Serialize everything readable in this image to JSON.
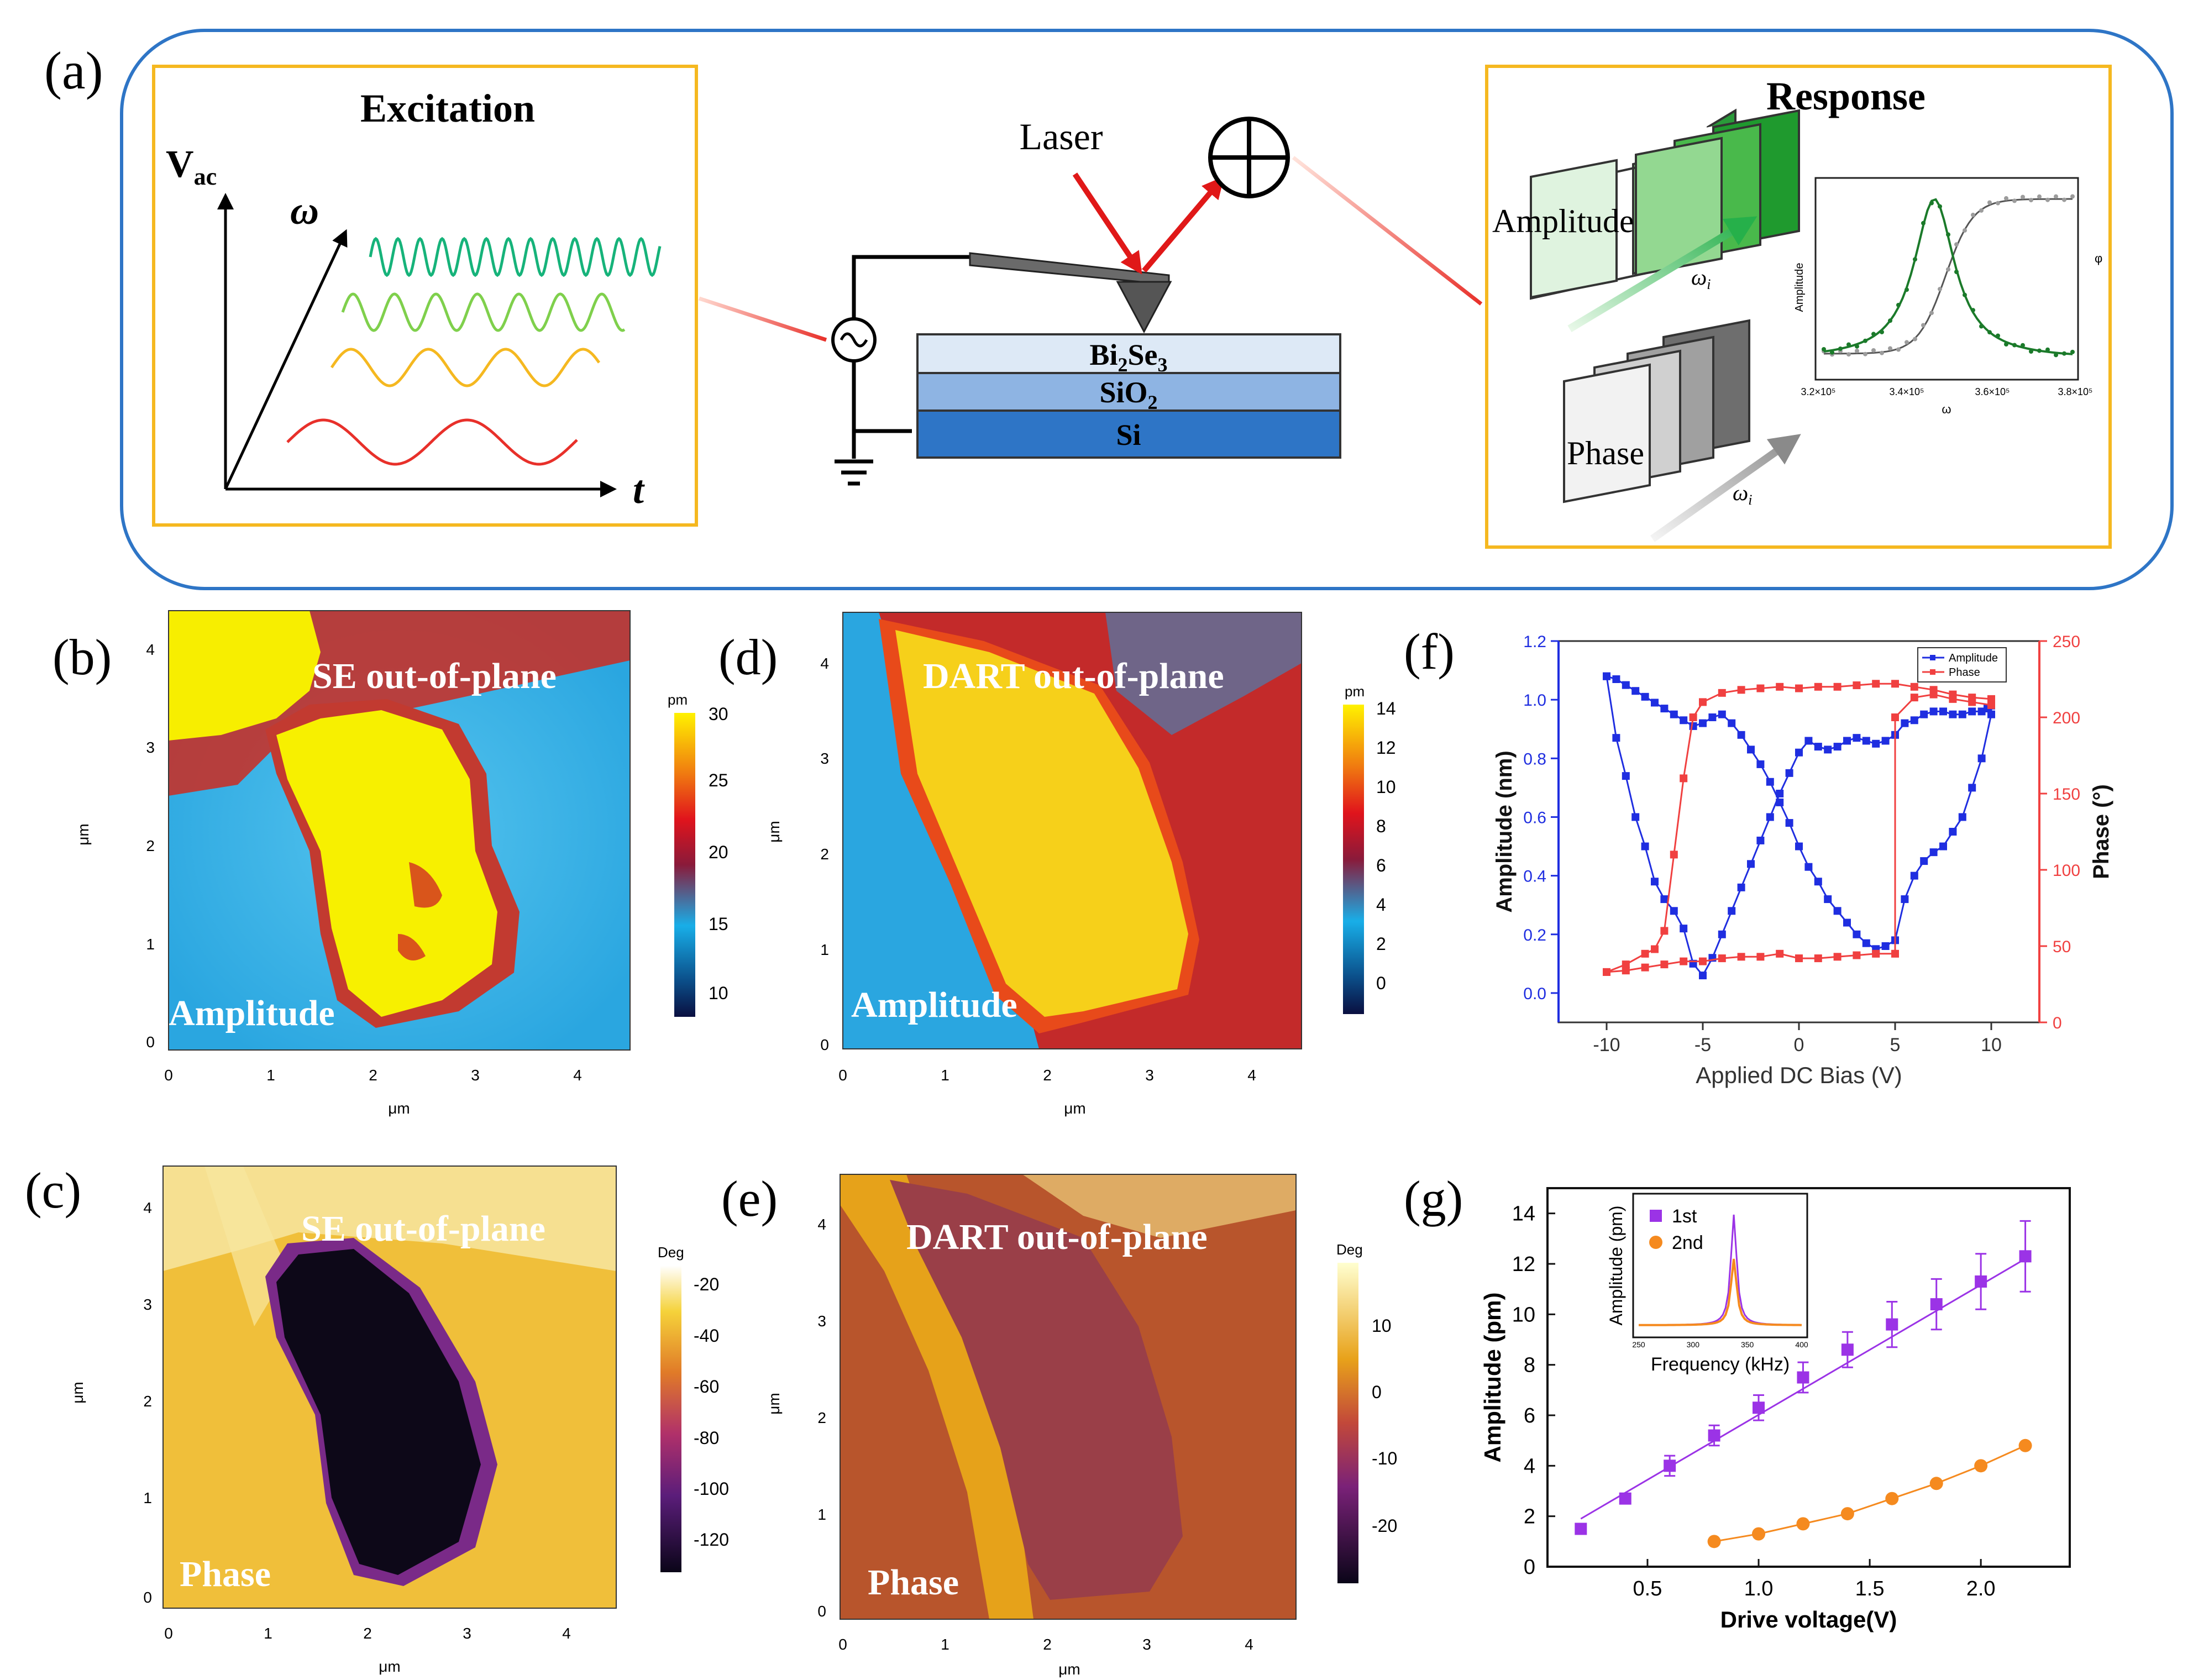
{
  "panel_labels": {
    "a": "(a)",
    "b": "(b)",
    "c": "(c)",
    "d": "(d)",
    "e": "(e)",
    "f": "(f)",
    "g": "(g)"
  },
  "schematic": {
    "excitation_title": "Excitation",
    "vac_main": "V",
    "vac_sub": "ac",
    "omega": "ω",
    "time": "t",
    "laser": "Laser",
    "layers": [
      {
        "main": "Bi",
        "sub1": "2",
        "mid": "Se",
        "sub2": "3"
      },
      {
        "main": "SiO",
        "sub1": "2"
      },
      {
        "main": "Si"
      }
    ],
    "response_title": "Response",
    "amplitude_label": "Amplitude",
    "phase_label": "Phase",
    "omega_i_main": "ω",
    "omega_i_sub": "i",
    "mini_plot": {
      "ylabel": "Amplitude",
      "ylabel_right": "φ",
      "xlabel": "ω",
      "xticks": [
        "3.2×10⁵",
        "3.4×10⁵",
        "3.6×10⁵",
        "3.8×10⁵"
      ]
    },
    "colors": {
      "frame": "#2e75c6",
      "box": "#f5b820",
      "wave1": "#16b37a",
      "wave2": "#7fd04c",
      "wave3": "#f5b820",
      "wave4": "#e8302a"
    }
  },
  "maps": {
    "b": {
      "title": "SE out-of-plane",
      "label": "Amplitude",
      "unit": "pm",
      "cbar_ticks": [
        "30",
        "25",
        "20",
        "15",
        "10"
      ],
      "xticks": [
        "0",
        "1",
        "2",
        "3",
        "4"
      ],
      "yticks": [
        "4",
        "3",
        "2",
        "1",
        "0"
      ],
      "xlabel": "μm",
      "ylabel": "μm"
    },
    "c": {
      "title": "SE out-of-plane",
      "label": "Phase",
      "unit": "Deg",
      "cbar_ticks": [
        "-20",
        "-40",
        "-60",
        "-80",
        "-100",
        "-120"
      ],
      "xticks": [
        "0",
        "1",
        "2",
        "3",
        "4"
      ],
      "yticks": [
        "4",
        "3",
        "2",
        "1",
        "0"
      ],
      "xlabel": "μm",
      "ylabel": "μm"
    },
    "d": {
      "title": "DART out-of-plane",
      "label": "Amplitude",
      "unit": "pm",
      "cbar_ticks": [
        "14",
        "12",
        "10",
        "8",
        "6",
        "4",
        "2",
        "0"
      ],
      "xticks": [
        "0",
        "1",
        "2",
        "3",
        "4"
      ],
      "yticks": [
        "4",
        "3",
        "2",
        "1",
        "0"
      ],
      "xlabel": "μm",
      "ylabel": "μm"
    },
    "e": {
      "title": "DART out-of-plane",
      "label": "Phase",
      "unit": "Deg",
      "cbar_ticks": [
        "10",
        "0",
        "-10",
        "-20"
      ],
      "xticks": [
        "0",
        "1",
        "2",
        "3",
        "4"
      ],
      "yticks": [
        "4",
        "3",
        "2",
        "1",
        "0"
      ],
      "xlabel": "μm",
      "ylabel": "μm"
    }
  },
  "chart_data": [
    {
      "id": "f",
      "type": "line",
      "xlabel": "Applied DC Bias (V)",
      "ylabel": "Amplitude (nm)",
      "ylabel_right": "Phase (°)",
      "xlim": [
        -12.5,
        12.5
      ],
      "ylim": [
        -0.1,
        1.2
      ],
      "ylim_right": [
        0,
        250
      ],
      "xticks": [
        -10,
        -5,
        0,
        5,
        10
      ],
      "yticks": [
        0.0,
        0.2,
        0.4,
        0.6,
        0.8,
        1.0,
        1.2
      ],
      "yticks_right": [
        0,
        50,
        100,
        150,
        200,
        250
      ],
      "legend": [
        "Amplitude",
        "Phase"
      ],
      "series": [
        {
          "name": "Amplitude",
          "color": "#1f2ee0",
          "axis": "left",
          "x": [
            -10,
            -9.5,
            -9,
            -8.5,
            -8,
            -7.5,
            -7,
            -6.5,
            -6,
            -5.5,
            -5,
            -4.5,
            -4,
            -3.5,
            -3,
            -2.5,
            -2,
            -1.5,
            -1,
            -0.5,
            0,
            0.5,
            1,
            1.5,
            2,
            2.5,
            3,
            3.5,
            4,
            4.5,
            5,
            5.5,
            6,
            6.5,
            7,
            7.5,
            8,
            8.5,
            9,
            9.5,
            10,
            10,
            9.8,
            9.5,
            9,
            8.5,
            8,
            7.5,
            7,
            6.5,
            6,
            5.5,
            5,
            4.5,
            4,
            3.5,
            3,
            2.5,
            2,
            1.5,
            1,
            0.5,
            0,
            -0.5,
            -1,
            -1.5,
            -2,
            -2.5,
            -3,
            -3.5,
            -4,
            -4.5,
            -5,
            -5.5,
            -6,
            -6.5,
            -7,
            -7.5,
            -8,
            -8.5,
            -9,
            -9.5,
            -10
          ],
          "y": [
            1.08,
            1.07,
            1.05,
            1.03,
            1.01,
            0.99,
            0.97,
            0.95,
            0.93,
            0.91,
            0.92,
            0.94,
            0.95,
            0.92,
            0.88,
            0.83,
            0.78,
            0.72,
            0.65,
            0.58,
            0.5,
            0.43,
            0.38,
            0.32,
            0.28,
            0.24,
            0.2,
            0.17,
            0.15,
            0.16,
            0.18,
            0.32,
            0.4,
            0.45,
            0.48,
            0.5,
            0.55,
            0.6,
            0.7,
            0.8,
            0.95,
            0.98,
            0.97,
            0.96,
            0.96,
            0.95,
            0.95,
            0.96,
            0.96,
            0.95,
            0.93,
            0.92,
            0.88,
            0.86,
            0.85,
            0.86,
            0.87,
            0.86,
            0.84,
            0.83,
            0.84,
            0.86,
            0.82,
            0.75,
            0.68,
            0.6,
            0.52,
            0.44,
            0.36,
            0.28,
            0.2,
            0.12,
            0.06,
            0.1,
            0.22,
            0.28,
            0.32,
            0.38,
            0.5,
            0.6,
            0.74,
            0.87,
            1.08
          ]
        },
        {
          "name": "Phase",
          "color": "#f04040",
          "axis": "right",
          "x": [
            -10,
            -9,
            -8,
            -7,
            -6,
            -5,
            -4,
            -3,
            -2,
            -1,
            0,
            1,
            2,
            3,
            4,
            5,
            5,
            6,
            7,
            8,
            9,
            10,
            10,
            9,
            8,
            7,
            6,
            5,
            4,
            3,
            2,
            1,
            0,
            -1,
            -2,
            -3,
            -4,
            -5,
            -5.5,
            -6,
            -6.5,
            -7,
            -7.5,
            -8,
            -9,
            -10
          ],
          "y": [
            33,
            34,
            36,
            38,
            40,
            40,
            42,
            43,
            43,
            45,
            42,
            42,
            43,
            44,
            45,
            45,
            200,
            213,
            215,
            212,
            210,
            208,
            212,
            213,
            215,
            218,
            220,
            222,
            222,
            221,
            220,
            220,
            219,
            220,
            219,
            218,
            216,
            210,
            200,
            160,
            110,
            60,
            48,
            45,
            38,
            33
          ]
        }
      ]
    },
    {
      "id": "g",
      "type": "scatter",
      "xlabel": "Drive voltage(V)",
      "ylabel": "Amplitude (pm)",
      "xlim": [
        0.05,
        2.4
      ],
      "ylim": [
        0,
        15
      ],
      "xticks": [
        0.5,
        1.0,
        1.5,
        2.0
      ],
      "yticks": [
        0,
        2,
        4,
        6,
        8,
        10,
        12,
        14
      ],
      "series": [
        {
          "name": "1st",
          "color": "#9b33e6",
          "x": [
            0.2,
            0.4,
            0.6,
            0.8,
            1.0,
            1.2,
            1.4,
            1.6,
            1.8,
            2.0,
            2.2
          ],
          "y": [
            1.5,
            2.7,
            4.0,
            5.2,
            6.3,
            7.5,
            8.6,
            9.6,
            10.4,
            11.3,
            12.3
          ],
          "err": [
            0.1,
            0.2,
            0.4,
            0.4,
            0.5,
            0.6,
            0.7,
            0.9,
            1.0,
            1.1,
            1.4
          ],
          "fit": [
            [
              0.2,
              1.9
            ],
            [
              2.2,
              12.2
            ]
          ]
        },
        {
          "name": "2nd",
          "color": "#f58a1f",
          "x": [
            0.8,
            1.0,
            1.2,
            1.4,
            1.6,
            1.8,
            2.0,
            2.2
          ],
          "y": [
            1.0,
            1.3,
            1.7,
            2.1,
            2.7,
            3.3,
            4.0,
            4.8
          ],
          "err": [
            0,
            0,
            0,
            0,
            0,
            0,
            0,
            0
          ]
        }
      ],
      "inset": {
        "xlabel": "Frequency (kHz)",
        "ylabel": "Amplitude (pm)",
        "xticks": [
          "250",
          "300",
          "350",
          "400"
        ],
        "legend": [
          "1st",
          "2nd"
        ]
      }
    }
  ]
}
